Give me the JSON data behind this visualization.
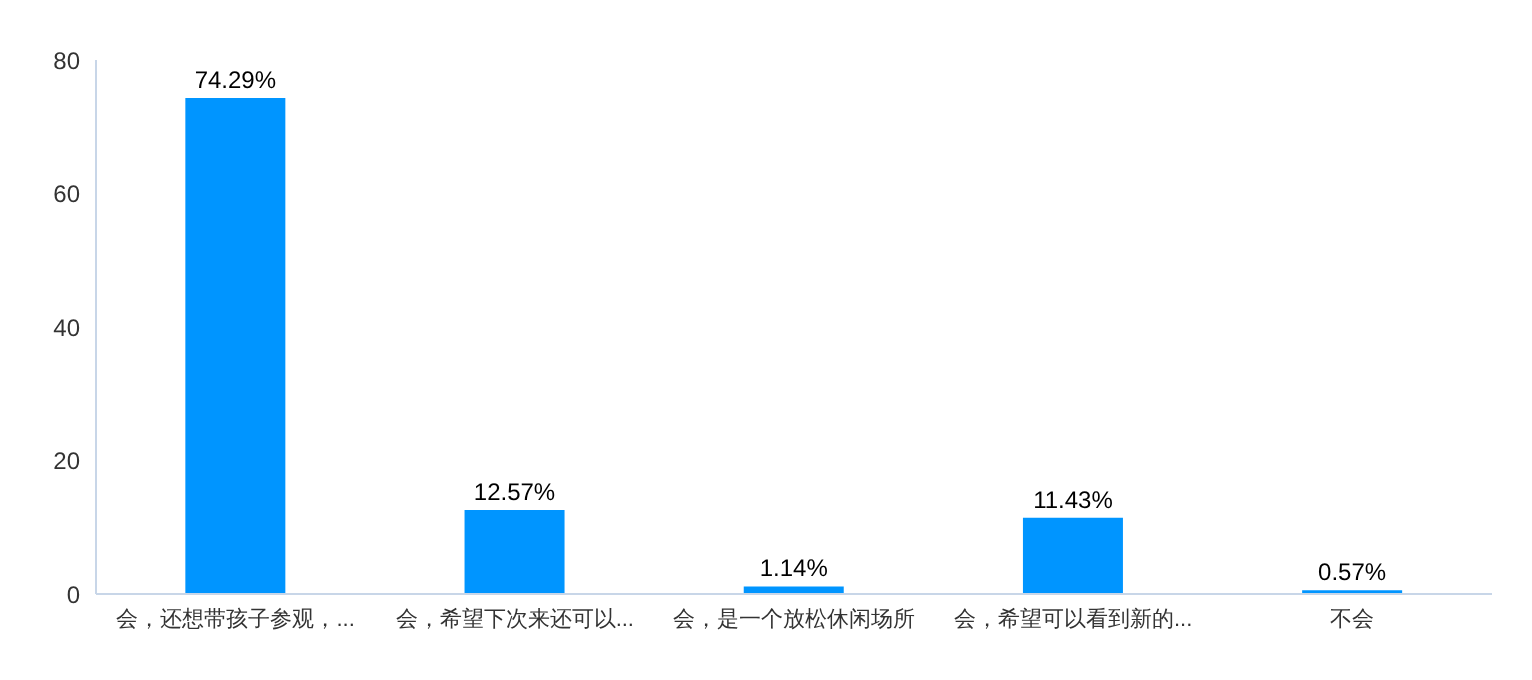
{
  "chart_data": {
    "type": "bar",
    "categories": [
      "会，还想带孩子参观，...",
      "会，希望下次来还可以...",
      "会，是一个放松休闲场所",
      "会，希望可以看到新的...",
      "不会"
    ],
    "values": [
      74.29,
      12.57,
      1.14,
      11.43,
      0.57
    ],
    "value_labels": [
      "74.29%",
      "12.57%",
      "1.14%",
      "11.43%",
      "0.57%"
    ],
    "color": "#0095ff",
    "ylim": [
      0,
      80
    ],
    "yticks": [
      0,
      20,
      40,
      60,
      80
    ],
    "grid": false
  }
}
